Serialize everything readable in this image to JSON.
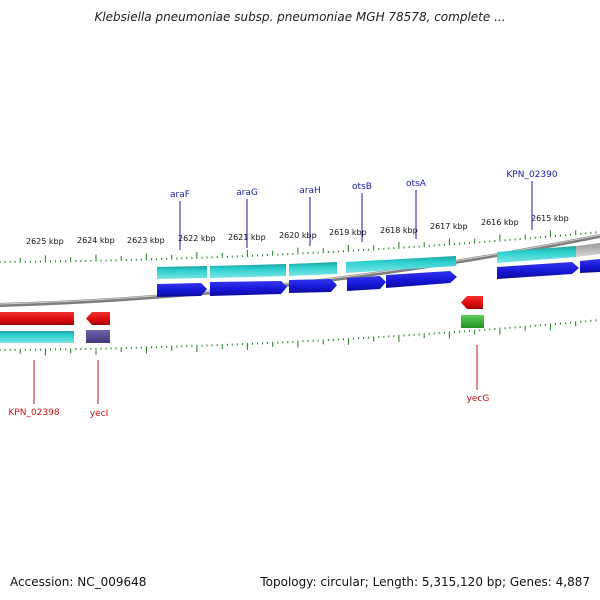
{
  "title": "Klebsiella pneumoniae subsp. pneumoniae MGH 78578, complete ...",
  "footer": {
    "accession": "Accession: NC_009648",
    "topology": "Topology: circular; Length: 5,315,120 bp; Genes: 4,887"
  },
  "colors": {
    "forward_gene": "#1b1bd9",
    "reverse_gene": "#e01010",
    "cds_cyan": "#27c5c5",
    "cds_gray": "#b4b4b4",
    "purple_feature": "#5a4d93",
    "green_feature": "#3ab83a",
    "tick": "#1d7a1d",
    "backbone": "#8a8a8a",
    "label_forward": "#1a1aa0",
    "label_reverse": "#cc1111"
  },
  "top_scale_labels": [
    "2625 kbp",
    "2624 kbp",
    "2623 kbp",
    "2622 kbp",
    "2621 kbp",
    "2620 kbp",
    "2619 kbp",
    "2618 kbp",
    "2617 kbp",
    "2616 kbp",
    "2615 kbp"
  ],
  "forward_gene_labels": [
    "araF",
    "araG",
    "araH",
    "otsB",
    "otsA",
    "KPN_02390"
  ],
  "reverse_gene_labels": [
    "KPN_02398",
    "yecI",
    "yecG"
  ]
}
